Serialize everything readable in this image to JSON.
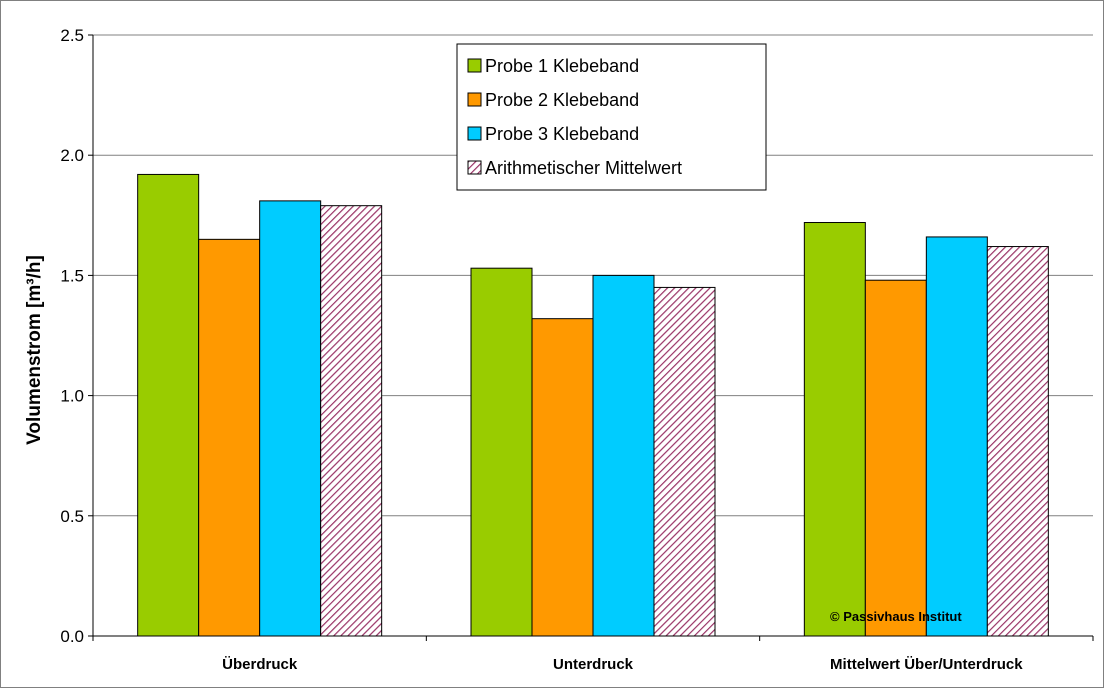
{
  "chart_data": {
    "type": "bar",
    "title": "",
    "xlabel": "",
    "ylabel": "Volumenstrom [m³/h]",
    "ylim": [
      0,
      2.5
    ],
    "yticks": [
      "0.0",
      "0.5",
      "1.0",
      "1.5",
      "2.0",
      "2.5"
    ],
    "grid": true,
    "legend_position": "top-center",
    "categories": [
      "Überdruck",
      "Unterdruck",
      "Mittelwert Über/Unterdruck"
    ],
    "series": [
      {
        "name": "Probe 1 Klebeband",
        "color": "#99cc00",
        "pattern": "solid",
        "values": [
          1.92,
          1.53,
          1.72
        ]
      },
      {
        "name": "Probe 2 Klebeband",
        "color": "#ff9900",
        "pattern": "solid",
        "values": [
          1.65,
          1.32,
          1.48
        ]
      },
      {
        "name": "Probe 3 Klebeband",
        "color": "#00ccff",
        "pattern": "solid",
        "values": [
          1.81,
          1.5,
          1.66
        ]
      },
      {
        "name": "Arithmetischer Mittelwert",
        "color": "#993366",
        "pattern": "diagonal-hatch",
        "values": [
          1.79,
          1.45,
          1.62
        ]
      }
    ],
    "annotation": "© Passivhaus Institut"
  }
}
